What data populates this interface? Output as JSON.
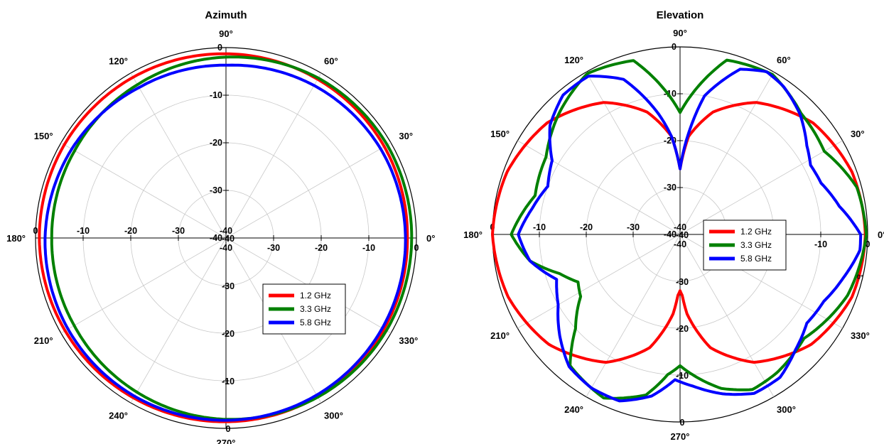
{
  "chart_data": [
    {
      "type": "polar",
      "title": "Azimuth",
      "radial_range_db": [
        -40,
        0
      ],
      "radial_ticks": [
        0,
        -10,
        -20,
        -30,
        -40
      ],
      "axis_tick_labels": [
        {
          "text": "0"
        },
        {
          "text": "-10"
        },
        {
          "text": "-20"
        },
        {
          "text": "-30"
        },
        {
          "text": "-40"
        }
      ],
      "angle_labels": [
        "0°",
        "30°",
        "60°",
        "90°",
        "120°",
        "150°",
        "180°",
        "210°",
        "240°",
        "270°",
        "300°",
        "330°"
      ],
      "grid": true,
      "legend_placement": "lower-right",
      "series": [
        {
          "name": "1.2 GHz",
          "color": "#ff0000",
          "angles": [
            0,
            30,
            60,
            90,
            120,
            150,
            180,
            210,
            240,
            270,
            300,
            330,
            360
          ],
          "values": [
            -1.9,
            -1.6,
            -1.5,
            -1.3,
            -1.0,
            -0.8,
            -0.8,
            -1.0,
            -1.2,
            -1.4,
            -1.5,
            -1.7,
            -1.9
          ]
        },
        {
          "name": "3.3 GHz",
          "color": "#008000",
          "angles": [
            0,
            30,
            60,
            90,
            120,
            150,
            180,
            210,
            240,
            270,
            300,
            330,
            360
          ],
          "values": [
            -1.0,
            -0.9,
            -1.2,
            -2.0,
            -2.8,
            -3.3,
            -3.4,
            -3.2,
            -2.6,
            -1.9,
            -1.4,
            -1.1,
            -1.0
          ]
        },
        {
          "name": "5.8 GHz",
          "color": "#0000ff",
          "angles": [
            0,
            30,
            60,
            90,
            120,
            150,
            180,
            210,
            240,
            270,
            300,
            330,
            360
          ],
          "values": [
            -2.3,
            -2.5,
            -3.0,
            -3.7,
            -3.5,
            -2.6,
            -2.0,
            -1.7,
            -1.6,
            -1.7,
            -1.9,
            -2.1,
            -2.3
          ]
        }
      ]
    },
    {
      "type": "polar",
      "title": "Elevation",
      "radial_range_db": [
        -40,
        0
      ],
      "radial_ticks": [
        0,
        -10,
        -20,
        -30,
        -40
      ],
      "axis_tick_labels": [
        {
          "text": "0"
        },
        {
          "text": "-10"
        },
        {
          "text": "-20"
        },
        {
          "text": "-30"
        },
        {
          "text": "-40"
        }
      ],
      "angle_labels": [
        "0°",
        "30°",
        "60°",
        "90°",
        "120°",
        "150°",
        "180°",
        "210°",
        "240°",
        "270°",
        "300°",
        "330°"
      ],
      "extra_labels": [
        "0°"
      ],
      "grid": true,
      "legend_placement": "right",
      "series": [
        {
          "name": "1.2 GHz",
          "color": "#ff0000",
          "angles": [
            0,
            20,
            40,
            60,
            75,
            85,
            90,
            95,
            105,
            120,
            140,
            160,
            180,
            200,
            220,
            240,
            255,
            265,
            268,
            270,
            272,
            275,
            285,
            300,
            320,
            340,
            360
          ],
          "values": [
            -0.5,
            -1.0,
            -3.0,
            -7.5,
            -13,
            -19,
            -26,
            -19,
            -13,
            -7.5,
            -3.0,
            -0.8,
            0,
            -1.0,
            -3.5,
            -8.5,
            -15,
            -23,
            -27,
            -28,
            -27,
            -23,
            -15,
            -8.5,
            -3.5,
            -1.0,
            -0.5
          ]
        },
        {
          "name": "3.3 GHz",
          "color": "#008000",
          "angles": [
            0,
            15,
            30,
            45,
            60,
            75,
            90,
            105,
            120,
            135,
            150,
            165,
            180,
            190,
            198,
            205,
            212,
            222,
            230,
            245,
            258,
            265,
            270,
            275,
            285,
            295,
            305,
            320,
            340,
            360
          ],
          "values": [
            -0.3,
            -1.0,
            -4.5,
            -3.5,
            -0.6,
            -1.5,
            -14,
            -1.6,
            -0.4,
            -3.5,
            -7.0,
            -8.0,
            -4.0,
            -7.5,
            -13,
            -16,
            -15,
            -10,
            -3.5,
            -1.5,
            -5.0,
            -10,
            -12,
            -10,
            -6.0,
            -3.5,
            -4.0,
            -5.5,
            -2.0,
            -0.3
          ]
        },
        {
          "name": "5.8 GHz",
          "color": "#0000ff",
          "angles": [
            0,
            10,
            20,
            28,
            35,
            45,
            55,
            62,
            70,
            80,
            85,
            90,
            95,
            100,
            110,
            120,
            130,
            140,
            150,
            160,
            170,
            180,
            190,
            200,
            210,
            220,
            230,
            240,
            250,
            260,
            268,
            275,
            285,
            295,
            305,
            315,
            325,
            335,
            345,
            355,
            360
          ],
          "values": [
            -1.5,
            -5.5,
            -8.0,
            -8.5,
            -7.0,
            -3.8,
            -1.5,
            -0.7,
            -2.5,
            -10,
            -18,
            -26,
            -19,
            -14,
            -4.8,
            -1.0,
            -1.2,
            -3.8,
            -8.5,
            -10,
            -8.0,
            -5.5,
            -7.5,
            -12,
            -10,
            -6.5,
            -3.2,
            -2.2,
            -2.2,
            -5.0,
            -9.0,
            -7.5,
            -4.8,
            -2.6,
            -2.8,
            -5.2,
            -7.0,
            -6.2,
            -4.0,
            -1.5,
            -1.5
          ]
        }
      ]
    }
  ]
}
